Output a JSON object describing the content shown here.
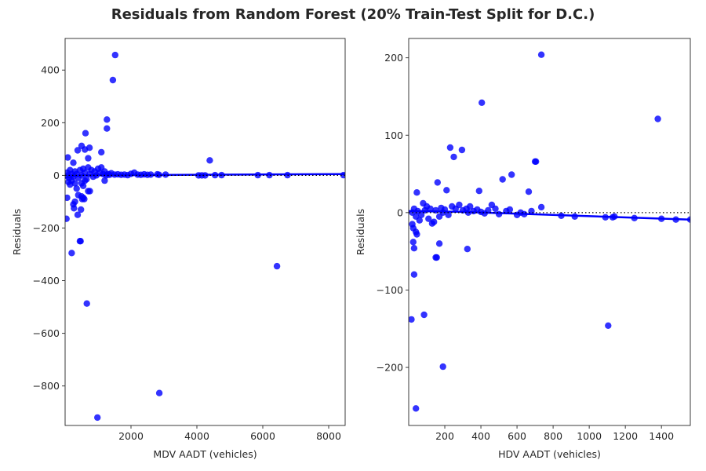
{
  "figure_title": "Residuals from Random Forest (20% Train-Test Split for D.C.)",
  "colors": {
    "points": "#0000ff",
    "trend": "#0000ff",
    "zero_line": "#000000",
    "axes": "#262626"
  },
  "chart_data": [
    {
      "type": "scatter",
      "xlabel": "MDV AADT (vehicles)",
      "ylabel": "Residuals",
      "xlim": [
        0,
        8500
      ],
      "ylim": [
        -950,
        520
      ],
      "xticks": [
        2000,
        4000,
        6000,
        8000
      ],
      "xtick_labels": [
        "2000",
        "4000",
        "6000",
        "8000"
      ],
      "yticks": [
        -800,
        -600,
        -400,
        -200,
        0,
        200,
        400
      ],
      "ytick_labels": [
        "−800",
        "−600",
        "−400",
        "−200",
        "0",
        "200",
        "400"
      ],
      "zero_reference_line": true,
      "grid": false,
      "points": [
        [
          1520,
          457
        ],
        [
          1450,
          362
        ],
        [
          1270,
          212
        ],
        [
          1270,
          178
        ],
        [
          620,
          160
        ],
        [
          740,
          105
        ],
        [
          380,
          95
        ],
        [
          1100,
          88
        ],
        [
          80,
          68
        ],
        [
          700,
          65
        ],
        [
          4390,
          57
        ],
        [
          500,
          112
        ],
        [
          250,
          48
        ],
        [
          600,
          98
        ],
        [
          60,
          10
        ],
        [
          90,
          0
        ],
        [
          120,
          -10
        ],
        [
          150,
          20
        ],
        [
          200,
          5
        ],
        [
          250,
          -5
        ],
        [
          300,
          15
        ],
        [
          350,
          5
        ],
        [
          400,
          -10
        ],
        [
          450,
          20
        ],
        [
          500,
          0
        ],
        [
          550,
          25
        ],
        [
          600,
          10
        ],
        [
          650,
          -15
        ],
        [
          700,
          30
        ],
        [
          750,
          5
        ],
        [
          800,
          20
        ],
        [
          850,
          -5
        ],
        [
          900,
          15
        ],
        [
          950,
          0
        ],
        [
          1000,
          25
        ],
        [
          1050,
          10
        ],
        [
          1100,
          30
        ],
        [
          1150,
          5
        ],
        [
          1200,
          15
        ],
        [
          1250,
          0
        ],
        [
          1300,
          5
        ],
        [
          1350,
          2
        ],
        [
          1400,
          8
        ],
        [
          1500,
          3
        ],
        [
          1600,
          4
        ],
        [
          1700,
          2
        ],
        [
          1800,
          3
        ],
        [
          1900,
          1
        ],
        [
          2000,
          6
        ],
        [
          2100,
          10
        ],
        [
          2200,
          3
        ],
        [
          2300,
          2
        ],
        [
          2400,
          4
        ],
        [
          2500,
          2
        ],
        [
          2600,
          3
        ],
        [
          2800,
          4
        ],
        [
          2850,
          2
        ],
        [
          3050,
          3
        ],
        [
          4050,
          0
        ],
        [
          4150,
          0
        ],
        [
          4250,
          0
        ],
        [
          4550,
          1
        ],
        [
          4750,
          1
        ],
        [
          5850,
          1
        ],
        [
          6200,
          1
        ],
        [
          6750,
          1
        ],
        [
          8450,
          1
        ],
        [
          100,
          -25
        ],
        [
          150,
          -35
        ],
        [
          200,
          -20
        ],
        [
          300,
          -30
        ],
        [
          350,
          -50
        ],
        [
          500,
          -30
        ],
        [
          550,
          -40
        ],
        [
          600,
          -20
        ],
        [
          700,
          -60
        ],
        [
          1200,
          -20
        ],
        [
          750,
          -60
        ],
        [
          60,
          -85
        ],
        [
          250,
          -110
        ],
        [
          270,
          -125
        ],
        [
          300,
          -100
        ],
        [
          380,
          -150
        ],
        [
          400,
          -75
        ],
        [
          480,
          -130
        ],
        [
          500,
          -80
        ],
        [
          520,
          -90
        ],
        [
          550,
          -85
        ],
        [
          580,
          -90
        ],
        [
          40,
          -165
        ],
        [
          450,
          -250
        ],
        [
          470,
          -250
        ],
        [
          200,
          -295
        ],
        [
          6430,
          -345
        ],
        [
          660,
          -487
        ],
        [
          2860,
          -827
        ],
        [
          980,
          -920
        ]
      ],
      "trend": [
        [
          0,
          -10
        ],
        [
          400,
          0
        ],
        [
          8500,
          5
        ]
      ]
    },
    {
      "type": "scatter",
      "xlabel": "HDV AADT (vehicles)",
      "ylabel": "Residuals",
      "xlim": [
        0,
        1560
      ],
      "ylim": [
        -275,
        225
      ],
      "xticks": [
        200,
        400,
        600,
        800,
        1000,
        1200,
        1400
      ],
      "xtick_labels": [
        "200",
        "400",
        "600",
        "800",
        "1000",
        "1200",
        "1400"
      ],
      "yticks": [
        -200,
        -100,
        0,
        100,
        200
      ],
      "ytick_labels": [
        "−200",
        "−100",
        "0",
        "100",
        "200"
      ],
      "zero_reference_line": true,
      "grid": false,
      "points": [
        [
          735,
          204
        ],
        [
          405,
          142
        ],
        [
          1380,
          121
        ],
        [
          230,
          84
        ],
        [
          295,
          81
        ],
        [
          250,
          72
        ],
        [
          705,
          66
        ],
        [
          700,
          66
        ],
        [
          570,
          49
        ],
        [
          520,
          43
        ],
        [
          160,
          39
        ],
        [
          390,
          28
        ],
        [
          665,
          27
        ],
        [
          210,
          29
        ],
        [
          45,
          26
        ],
        [
          80,
          12
        ],
        [
          100,
          8
        ],
        [
          120,
          5
        ],
        [
          150,
          3
        ],
        [
          180,
          6
        ],
        [
          200,
          4
        ],
        [
          240,
          8
        ],
        [
          260,
          5
        ],
        [
          280,
          10
        ],
        [
          300,
          3
        ],
        [
          320,
          5
        ],
        [
          340,
          8
        ],
        [
          360,
          2
        ],
        [
          380,
          4
        ],
        [
          400,
          1
        ],
        [
          440,
          3
        ],
        [
          460,
          10
        ],
        [
          480,
          5
        ],
        [
          540,
          2
        ],
        [
          560,
          4
        ],
        [
          620,
          0
        ],
        [
          640,
          -2
        ],
        [
          680,
          2
        ],
        [
          735,
          7
        ],
        [
          20,
          0
        ],
        [
          30,
          5
        ],
        [
          40,
          -5
        ],
        [
          50,
          2
        ],
        [
          60,
          -10
        ],
        [
          70,
          -3
        ],
        [
          90,
          3
        ],
        [
          110,
          -8
        ],
        [
          130,
          -14
        ],
        [
          140,
          -12
        ],
        [
          170,
          -5
        ],
        [
          190,
          0
        ],
        [
          220,
          -3
        ],
        [
          330,
          0
        ],
        [
          420,
          -1
        ],
        [
          500,
          -2
        ],
        [
          600,
          -3
        ],
        [
          845,
          -4
        ],
        [
          920,
          -5
        ],
        [
          1090,
          -6
        ],
        [
          1130,
          -6
        ],
        [
          1140,
          -5
        ],
        [
          1250,
          -7
        ],
        [
          1400,
          -8
        ],
        [
          1480,
          -9
        ],
        [
          1560,
          -9
        ],
        [
          20,
          -15
        ],
        [
          25,
          -20
        ],
        [
          40,
          -25
        ],
        [
          45,
          -28
        ],
        [
          25,
          -38
        ],
        [
          30,
          -46
        ],
        [
          150,
          -58
        ],
        [
          155,
          -58
        ],
        [
          170,
          -40
        ],
        [
          325,
          -47
        ],
        [
          30,
          -80
        ],
        [
          85,
          -132
        ],
        [
          15,
          -138
        ],
        [
          1105,
          -146
        ],
        [
          190,
          -199
        ],
        [
          40,
          -253
        ]
      ],
      "trend": [
        [
          0,
          2
        ],
        [
          300,
          1
        ],
        [
          1560,
          -9
        ]
      ]
    }
  ]
}
